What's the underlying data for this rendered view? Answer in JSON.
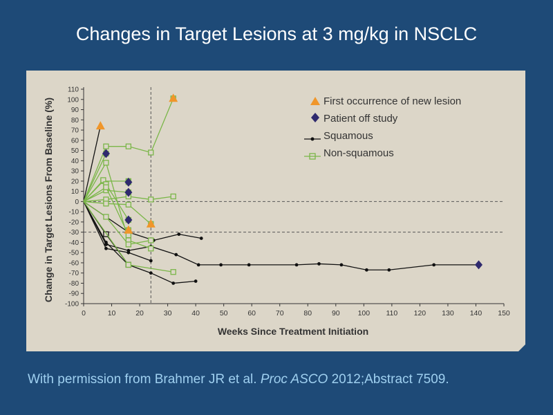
{
  "slide": {
    "title": "Changes in Target Lesions at 3 mg/kg in NSCLC",
    "citation_pre": "With permission from Brahmer JR et al. ",
    "citation_journal": "Proc ASCO",
    "citation_post": " 2012;Abstract 7509."
  },
  "colors": {
    "background": "#1e4a77",
    "panel": "#dcd6c8",
    "squamous": "#111111",
    "non_squamous": "#7ab648",
    "new_lesion": "#f0962a",
    "off_study": "#2f2a6e",
    "title": "#ffffff",
    "citation": "#9fd0f0"
  },
  "chart_data": {
    "type": "line",
    "xlabel": "Weeks Since Treatment Initiation",
    "ylabel": "Change in Target Lesions From Baseline (%)",
    "xlim": [
      0,
      150
    ],
    "ylim": [
      -100,
      110
    ],
    "x_ticks": [
      0,
      10,
      20,
      30,
      40,
      50,
      60,
      70,
      80,
      90,
      100,
      110,
      120,
      130,
      140,
      150
    ],
    "y_ticks": [
      110,
      100,
      90,
      80,
      70,
      60,
      50,
      40,
      30,
      20,
      10,
      0,
      -10,
      -20,
      -30,
      -40,
      -50,
      -60,
      -70,
      -80,
      -90,
      -100
    ],
    "reference_lines": {
      "horizontal": [
        0,
        -30
      ],
      "vertical": [
        24
      ]
    },
    "legend": {
      "position": "top-right",
      "entries": [
        {
          "label": "First occurrence of new lesion",
          "marker": "triangle"
        },
        {
          "label": "Patient off study",
          "marker": "diamond"
        },
        {
          "label": "Squamous",
          "marker": "line-dot"
        },
        {
          "label": "Non-squamous",
          "marker": "line-square"
        }
      ]
    },
    "series": [
      {
        "group": "squamous",
        "points": [
          [
            0,
            0
          ],
          [
            6,
            74
          ]
        ],
        "end": "triangle"
      },
      {
        "group": "squamous",
        "points": [
          [
            0,
            0
          ],
          [
            8,
            -46
          ],
          [
            16,
            -50
          ],
          [
            24,
            -58
          ]
        ]
      },
      {
        "group": "squamous",
        "points": [
          [
            0,
            0
          ],
          [
            8,
            -40
          ],
          [
            16,
            -62
          ],
          [
            24,
            -70
          ],
          [
            32,
            -80
          ],
          [
            40,
            -78
          ]
        ]
      },
      {
        "group": "squamous",
        "points": [
          [
            0,
            0
          ],
          [
            8,
            -42
          ],
          [
            16,
            -48
          ],
          [
            24,
            -44
          ],
          [
            33,
            -52
          ],
          [
            41,
            -62
          ],
          [
            49,
            -62
          ],
          [
            59,
            -62
          ],
          [
            76,
            -62
          ],
          [
            84,
            -61
          ],
          [
            92,
            -62
          ],
          [
            101,
            -67
          ],
          [
            109,
            -67
          ],
          [
            125,
            -62
          ],
          [
            141,
            -62
          ]
        ],
        "end": "diamond"
      },
      {
        "group": "squamous",
        "points": [
          [
            0,
            0
          ],
          [
            8,
            -32
          ],
          [
            16,
            -62
          ]
        ],
        "markers": "square"
      },
      {
        "group": "squamous",
        "points": [
          [
            0,
            0
          ],
          [
            16,
            -30
          ],
          [
            25,
            -38
          ],
          [
            34,
            -32
          ],
          [
            42,
            -36
          ]
        ]
      },
      {
        "group": "non_squamous",
        "points": [
          [
            0,
            0
          ],
          [
            8,
            54
          ],
          [
            16,
            54
          ],
          [
            24,
            48
          ],
          [
            32,
            101
          ]
        ],
        "end": "triangle"
      },
      {
        "group": "non_squamous",
        "points": [
          [
            0,
            0
          ],
          [
            8,
            38
          ],
          [
            16,
            -38
          ],
          [
            24,
            -46
          ]
        ]
      },
      {
        "group": "non_squamous",
        "points": [
          [
            0,
            0
          ],
          [
            8,
            -15
          ],
          [
            16,
            -42
          ],
          [
            24,
            -38
          ]
        ]
      },
      {
        "group": "non_squamous",
        "points": [
          [
            0,
            0
          ],
          [
            8,
            2
          ],
          [
            16,
            5
          ],
          [
            24,
            2
          ],
          [
            32,
            5
          ]
        ]
      },
      {
        "group": "non_squamous",
        "points": [
          [
            0,
            0
          ],
          [
            8,
            -2
          ],
          [
            16,
            -3
          ],
          [
            24,
            -22
          ]
        ],
        "end": "triangle"
      },
      {
        "group": "non_squamous",
        "points": [
          [
            0,
            0
          ],
          [
            16,
            -62
          ],
          [
            32,
            -69
          ]
        ]
      },
      {
        "group": "non_squamous",
        "points": [
          [
            0,
            0
          ],
          [
            7,
            20
          ],
          [
            16,
            20
          ],
          [
            16,
            19
          ]
        ],
        "end": "diamond"
      },
      {
        "group": "non_squamous",
        "points": [
          [
            0,
            0
          ],
          [
            8,
            11
          ],
          [
            16,
            9
          ]
        ],
        "end": "diamond"
      },
      {
        "group": "non_squamous",
        "points": [
          [
            0,
            0
          ],
          [
            8,
            47
          ]
        ],
        "end": "diamond"
      },
      {
        "group": "non_squamous",
        "points": [
          [
            0,
            0
          ],
          [
            7,
            21
          ],
          [
            8,
            17
          ],
          [
            16,
            -18
          ]
        ],
        "end": "diamond"
      },
      {
        "group": "non_squamous",
        "points": [
          [
            0,
            0
          ],
          [
            8,
            14
          ],
          [
            16,
            -33
          ],
          [
            16,
            -28
          ]
        ],
        "end": "triangle"
      }
    ]
  }
}
